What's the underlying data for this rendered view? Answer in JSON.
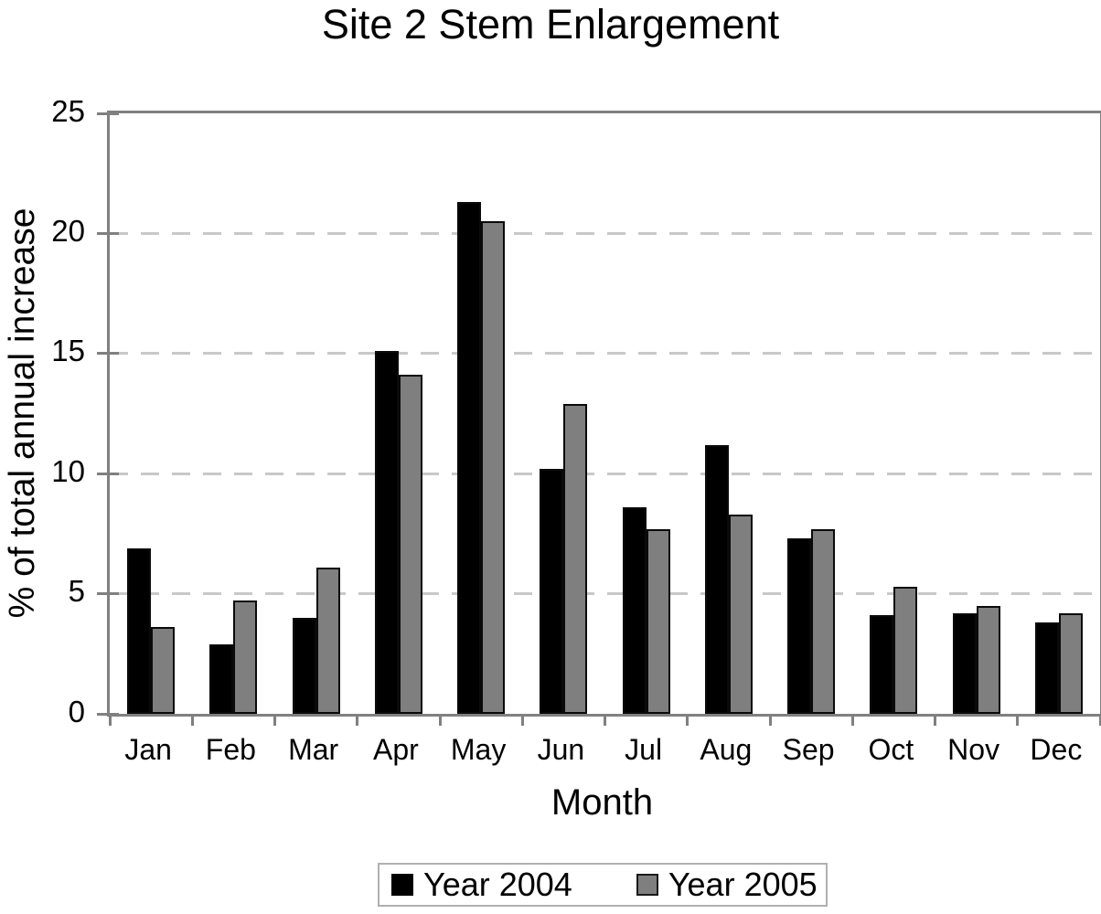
{
  "chart_data": {
    "type": "bar",
    "title": "Site 2 Stem Enlargement",
    "xlabel": "Month",
    "ylabel": "% of total annual increase",
    "categories": [
      "Jan",
      "Feb",
      "Mar",
      "Apr",
      "May",
      "Jun",
      "Jul",
      "Aug",
      "Sep",
      "Oct",
      "Nov",
      "Dec"
    ],
    "series": [
      {
        "name": "Year 2004",
        "color": "#000000",
        "values": [
          6.9,
          2.9,
          4.0,
          15.1,
          21.3,
          10.2,
          8.6,
          11.2,
          7.3,
          4.1,
          4.2,
          3.8
        ]
      },
      {
        "name": "Year 2005",
        "color": "#7f7f7f",
        "values": [
          3.6,
          4.7,
          6.1,
          14.1,
          20.5,
          12.9,
          7.7,
          8.3,
          7.7,
          5.3,
          4.5,
          4.2
        ]
      }
    ],
    "ylim": [
      0,
      25
    ],
    "yticks": [
      0,
      5,
      10,
      15,
      20,
      25
    ],
    "grid": "horizontal dashed gridlines at y ticks",
    "legend_position": "bottom"
  },
  "colors": {
    "axis": "#808080",
    "gridline": "#c8c8c8",
    "legend_border": "#b0b0b0",
    "background": "#ffffff",
    "text": "#000000"
  }
}
